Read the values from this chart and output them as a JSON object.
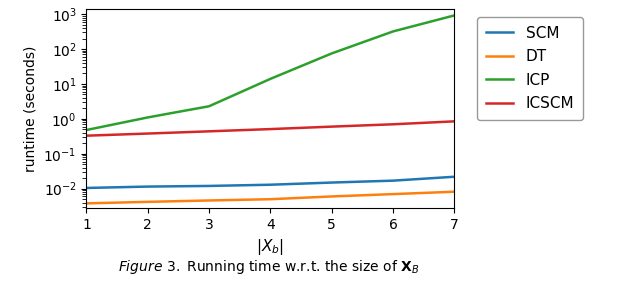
{
  "x": [
    1,
    2,
    3,
    4,
    5,
    6,
    7
  ],
  "SCM": [
    0.0105,
    0.0115,
    0.012,
    0.013,
    0.015,
    0.017,
    0.022
  ],
  "DT": [
    0.0038,
    0.0042,
    0.0046,
    0.005,
    0.006,
    0.007,
    0.0082
  ],
  "ICP": [
    0.48,
    1.1,
    2.3,
    14.0,
    75.0,
    320.0,
    920.0
  ],
  "ICSCM": [
    0.33,
    0.38,
    0.44,
    0.51,
    0.6,
    0.7,
    0.85
  ],
  "colors": {
    "SCM": "#1f77b4",
    "DT": "#ff7f0e",
    "ICP": "#2ca02c",
    "ICSCM": "#d62728"
  },
  "xlabel": "$|X_b|$",
  "ylabel": "runtime (seconds)",
  "xlim": [
    1,
    7
  ],
  "xticks": [
    1,
    2,
    3,
    4,
    5,
    6,
    7
  ],
  "legend_labels": [
    "SCM",
    "DT",
    "ICP",
    "ICSCM"
  ]
}
